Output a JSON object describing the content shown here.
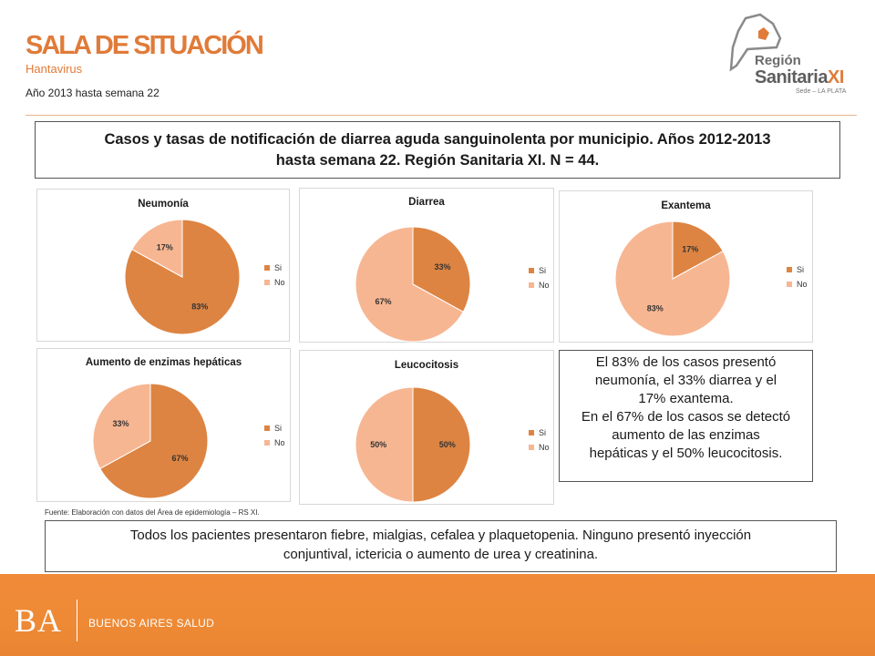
{
  "header": {
    "title": "SALA DE SITUACIÓN",
    "subtitle": "Hantavirus",
    "period": "Año 2013 hasta semana 22"
  },
  "logo": {
    "line1": "Región",
    "line2_main": "Sanitaria",
    "line2_accent": "XI",
    "line3": "Sede – LA PLATA"
  },
  "main_title": {
    "line1": "Casos y tasas de notificación de diarrea aguda sanguinolenta por municipio. Años 2012-2013",
    "line2": "hasta semana 22. Región Sanitaria XI. N = 44."
  },
  "colors": {
    "si": "#dd8443",
    "no": "#f7b692",
    "accent": "#e07b39"
  },
  "chart_data": [
    {
      "type": "pie",
      "title": "Neumonía",
      "categories": [
        "Si",
        "No"
      ],
      "values": [
        83,
        17
      ],
      "labels": [
        "83%",
        "17%"
      ],
      "legend": "right"
    },
    {
      "type": "pie",
      "title": "Diarrea",
      "categories": [
        "Si",
        "No"
      ],
      "values": [
        33,
        67
      ],
      "labels": [
        "33%",
        "67%"
      ],
      "legend": "right"
    },
    {
      "type": "pie",
      "title": "Exantema",
      "categories": [
        "Si",
        "No"
      ],
      "values": [
        17,
        83
      ],
      "labels": [
        "17%",
        "83%"
      ],
      "legend": "right"
    },
    {
      "type": "pie",
      "title": "Aumento de enzimas hepáticas",
      "categories": [
        "Si",
        "No"
      ],
      "values": [
        67,
        33
      ],
      "labels": [
        "67%",
        "33%"
      ],
      "legend": "right"
    },
    {
      "type": "pie",
      "title": "Leucocitosis",
      "categories": [
        "Si",
        "No"
      ],
      "values": [
        50,
        50
      ],
      "labels": [
        "50%",
        "50%"
      ],
      "legend": "right"
    }
  ],
  "note": {
    "lines": [
      "El 83% de los casos presentó",
      "neumonía, el 33% diarrea y el",
      "17% exantema.",
      "En el 67% de los casos se detectó",
      "aumento de las enzimas",
      "hepáticas y el 50% leucocitosis."
    ]
  },
  "source": "Fuente: Elaboración con datos del Área de epidemiología – RS XI.",
  "summary": {
    "line1": "Todos los pacientes presentaron fiebre, mialgias, cefalea y plaquetopenia. Ninguno presentó inyección",
    "line2": "conjuntival, ictericia o aumento de urea y creatinina."
  },
  "footer": {
    "ba": "BA",
    "label": "BUENOS AIRES SALUD"
  }
}
